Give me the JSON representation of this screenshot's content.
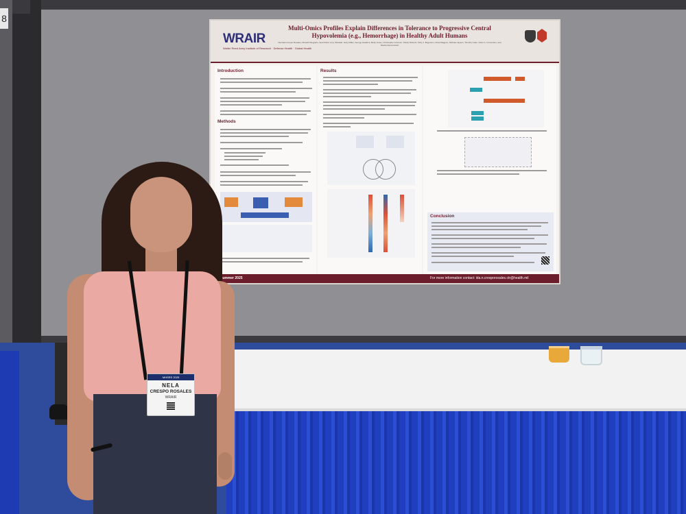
{
  "booth": {
    "panel_number": "8"
  },
  "poster": {
    "logo": "WRAIR",
    "logo_tagline": "Walter Reed Army Institute of Research · Defense Health · Global Health",
    "title": "Multi-Omics Profiles Explain Differences in Tolerance to Progressive Central Hypovolemia (e.g., Hemorrhage) in Healthy Adult Humans",
    "authors": "Ida Nela Crespo Rosales, Riceath Megyaris, Seid Mohit, Amy Shulaski, Hazy Miller, George Hawkins, Betty Jones, Christopher Johnson, Shelly Roberts, Kirby J. Bogerson, Chad Wagpon, Michael Jayson, Timothy Cutts, Victor A. Convertino, and Rasha Hammamieh",
    "sections": {
      "introduction": "Introduction",
      "methods": "Methods",
      "results": "Results",
      "conclusion": "Conclusion"
    },
    "footer_left": "Summer 2025",
    "footer_right": "For more information contact: ida.n.cresporosales.ctr@health.mil"
  },
  "badge": {
    "event": "MHSRS 2025",
    "first_name": "NELA",
    "last_name": "CRESPO ROSALES",
    "org": "WRAIR"
  },
  "colors": {
    "poster_accent": "#6b1d2b",
    "logo_blue": "#2d2f7a",
    "table_skirt": "#1f3fbf"
  }
}
